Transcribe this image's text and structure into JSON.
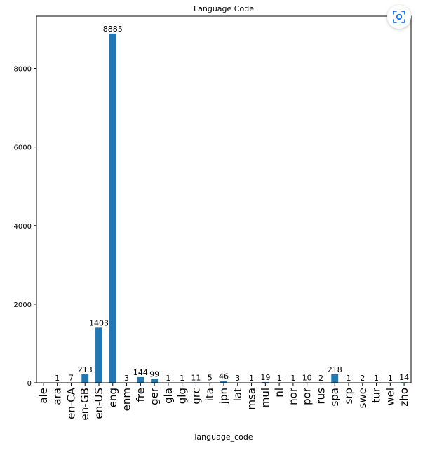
{
  "chart_data": {
    "type": "bar",
    "title": "Language Code",
    "xlabel": "language_code",
    "ylabel": "",
    "categories": [
      "ale",
      "ara",
      "en-CA",
      "en-GB",
      "en-US",
      "eng",
      "enm",
      "fre",
      "ger",
      "gla",
      "glg",
      "grc",
      "ita",
      "jpn",
      "lat",
      "msa",
      "mul",
      "nl",
      "nor",
      "por",
      "rus",
      "spa",
      "srp",
      "swe",
      "tur",
      "wel",
      "zho"
    ],
    "values": [
      1,
      1,
      7,
      213,
      1403,
      8885,
      3,
      144,
      99,
      1,
      1,
      11,
      5,
      46,
      3,
      1,
      19,
      1,
      1,
      10,
      2,
      218,
      1,
      2,
      1,
      1,
      14
    ],
    "data_labels": [
      "",
      "1",
      "7",
      "213",
      "1403",
      "8885",
      "3",
      "144",
      "99",
      "1",
      "1",
      "11",
      "5",
      "46",
      "3",
      "1",
      "19",
      "1",
      "1",
      "10",
      "2",
      "218",
      "1",
      "2",
      "1",
      "1",
      "14"
    ],
    "yticks": [
      0,
      2000,
      4000,
      6000,
      8000
    ],
    "ylim": [
      0,
      9329
    ],
    "grid": false,
    "legend": "none",
    "bar_color": "#1f77b4"
  },
  "ui": {
    "corner_button_icon": "screen-capture-icon",
    "accent": "#1a73e8"
  }
}
